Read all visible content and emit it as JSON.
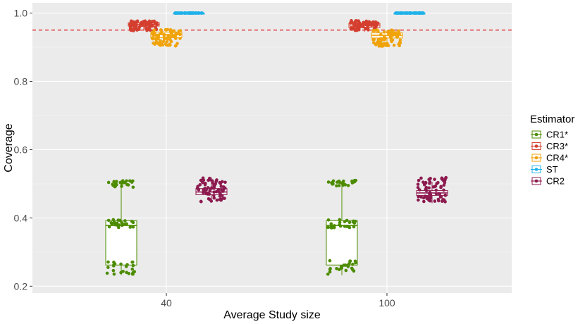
{
  "chart_data": {
    "type": "boxplot-jitter",
    "title": "",
    "xlabel": "Average Study size",
    "ylabel": "Coverage",
    "categories": [
      "40",
      "100"
    ],
    "yticks": [
      "0.2",
      "0.4",
      "0.6",
      "0.8",
      "1.0"
    ],
    "ylim": [
      0.18,
      1.03
    ],
    "reference_line": {
      "y": 0.95,
      "color": "#e41a1c",
      "style": "dashed"
    },
    "legend": {
      "title": "Estimator",
      "position": "right"
    },
    "series": [
      {
        "name": "CR1*",
        "color": "#4d8c00",
        "boxes": [
          {
            "category": "40",
            "q1": 0.262,
            "median": 0.378,
            "q3": 0.392,
            "min": 0.232,
            "max": 0.51
          },
          {
            "category": "100",
            "q1": 0.262,
            "median": 0.378,
            "q3": 0.392,
            "min": 0.232,
            "max": 0.5
          }
        ],
        "clusters": [
          [
            0.49,
            0.51
          ],
          [
            0.37,
            0.395
          ],
          [
            0.235,
            0.275
          ]
        ]
      },
      {
        "name": "CR3*",
        "color": "#d43f2f",
        "boxes": [
          {
            "category": "40",
            "q1": 0.962,
            "median": 0.967,
            "q3": 0.972,
            "min": 0.948,
            "max": 0.978
          },
          {
            "category": "100",
            "q1": 0.958,
            "median": 0.965,
            "q3": 0.97,
            "min": 0.945,
            "max": 0.976
          }
        ],
        "clusters": [
          [
            0.948,
            0.978
          ]
        ]
      },
      {
        "name": "CR4*",
        "color": "#f0a30a",
        "boxes": [
          {
            "category": "40",
            "q1": 0.928,
            "median": 0.937,
            "q3": 0.944,
            "min": 0.903,
            "max": 0.952
          },
          {
            "category": "100",
            "q1": 0.927,
            "median": 0.935,
            "q3": 0.942,
            "min": 0.9,
            "max": 0.95
          }
        ],
        "clusters": [
          [
            0.903,
            0.952
          ]
        ]
      },
      {
        "name": "ST",
        "color": "#1fb2ea",
        "boxes": [
          {
            "category": "40",
            "q1": 1.0,
            "median": 1.0,
            "q3": 1.0,
            "min": 1.0,
            "max": 1.0
          },
          {
            "category": "100",
            "q1": 1.0,
            "median": 1.0,
            "q3": 1.0,
            "min": 1.0,
            "max": 1.0
          }
        ],
        "clusters": [
          [
            1.0,
            1.0
          ]
        ]
      },
      {
        "name": "CR2",
        "color": "#8c1a4f",
        "boxes": [
          {
            "category": "40",
            "q1": 0.468,
            "median": 0.476,
            "q3": 0.486,
            "min": 0.447,
            "max": 0.518
          },
          {
            "category": "100",
            "q1": 0.466,
            "median": 0.473,
            "q3": 0.48,
            "min": 0.443,
            "max": 0.506
          }
        ],
        "clusters": [
          [
            0.447,
            0.518
          ]
        ]
      }
    ]
  }
}
